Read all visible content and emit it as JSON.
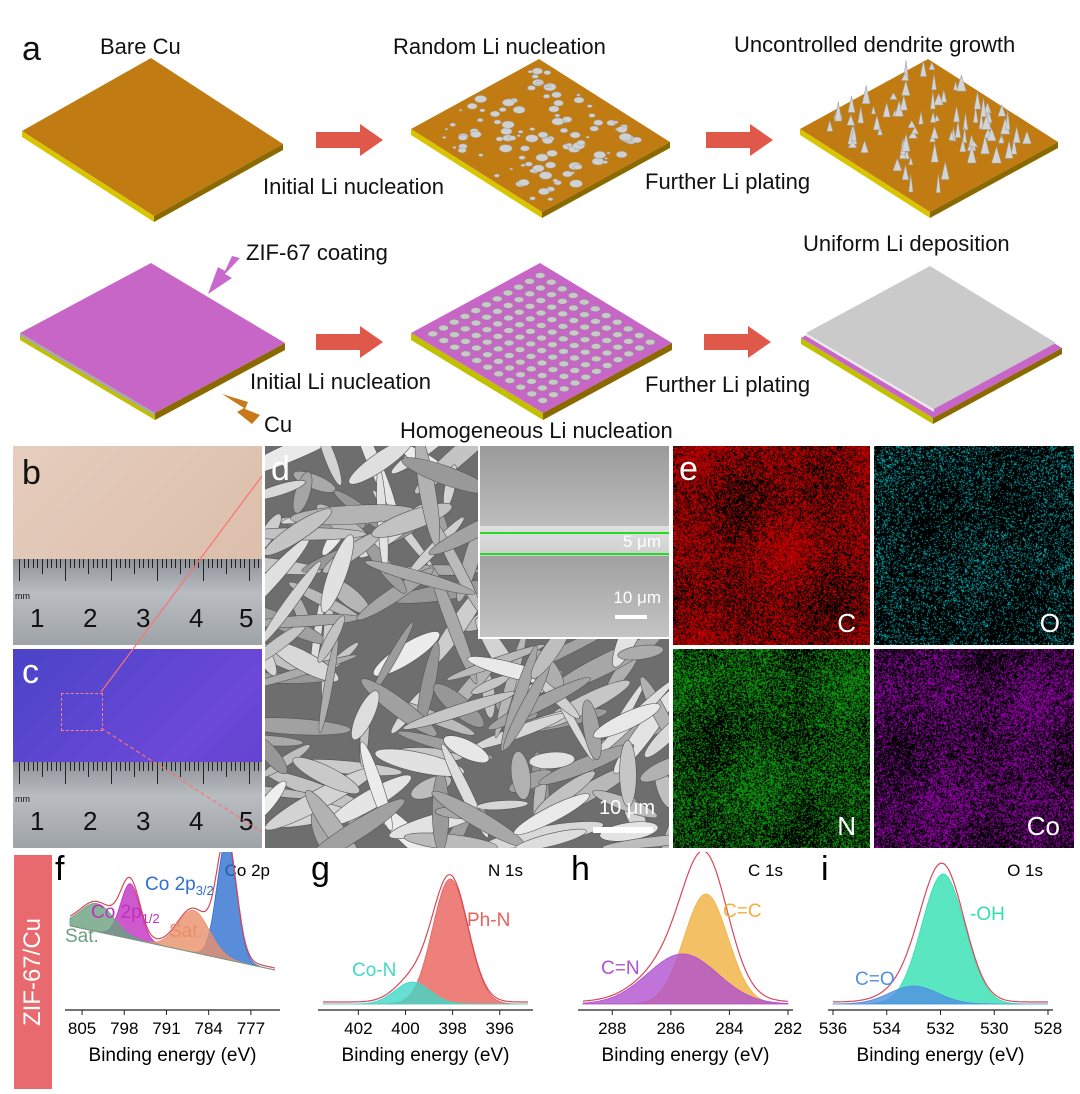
{
  "panel_a": {
    "letter": "a",
    "bare_cu": "Bare Cu",
    "random_li": "Random Li nucleation",
    "dendrite": "Uncontrolled dendrite growth",
    "initial_1": "Initial Li nucleation",
    "further_1": "Further Li plating",
    "zif_coating": "ZIF-67 coating",
    "uniform": "Uniform Li deposition",
    "initial_2": "Initial Li nucleation",
    "further_2": "Further Li plating",
    "cu": "Cu",
    "homogeneous": "Homogeneous Li nucleation",
    "colors": {
      "copper": "#c07c12",
      "zif": "#c866c8",
      "lithium": "#c9c9c9",
      "arrow": "#e0584a",
      "cu_arrow": "#c77818",
      "zif_arrow": "#c868cc"
    }
  },
  "panel_b": {
    "letter": "b",
    "ruler_numbers": [
      "1",
      "2",
      "3",
      "4",
      "5"
    ],
    "unit": "mm"
  },
  "panel_c": {
    "letter": "c",
    "ruler_numbers": [
      "1",
      "2",
      "3",
      "4",
      "5"
    ],
    "unit": "mm"
  },
  "panel_d": {
    "letter": "d",
    "scale_main": "10 μm",
    "inset_scale": "10 μm",
    "thickness": "5 μm"
  },
  "panel_e": {
    "letter": "e",
    "maps": [
      {
        "element": "C",
        "color": "#e00000"
      },
      {
        "element": "O",
        "color": "#00c8d0"
      },
      {
        "element": "N",
        "color": "#10b010"
      },
      {
        "element": "Co",
        "color": "#b000c8"
      }
    ]
  },
  "side_label": "ZIF-67/Cu",
  "chart_data": [
    {
      "type": "line",
      "letter": "f",
      "title": "Co 2p",
      "xlabel": "Binding energy (eV)",
      "x_ticks": [
        "805",
        "798",
        "791",
        "784",
        "777"
      ],
      "xlim": [
        807,
        773
      ],
      "peaks": [
        {
          "name": "Co 2p3/2",
          "label_main": "Co 2p",
          "label_sub": "3/2",
          "center": 781,
          "color": "#2f6fd0"
        },
        {
          "name": "Co 2p1/2",
          "label_main": "Co 2p",
          "label_sub": "1/2",
          "center": 797,
          "color": "#c030c0"
        },
        {
          "name": "Sat.",
          "label_main": "Sat.",
          "center": 786.5,
          "color": "#e8906a"
        },
        {
          "name": "Sat.",
          "label_main": "Sat.",
          "center": 802.5,
          "color": "#6aa080"
        }
      ]
    },
    {
      "type": "line",
      "letter": "g",
      "title": "N 1s",
      "xlabel": "Binding energy (eV)",
      "x_ticks": [
        "402",
        "400",
        "398",
        "396"
      ],
      "xlim": [
        403.5,
        394.8
      ],
      "peaks": [
        {
          "name": "Ph-N",
          "center": 398.1,
          "color": "#e8605a"
        },
        {
          "name": "Co-N",
          "center": 399.7,
          "color": "#40d8c8"
        }
      ]
    },
    {
      "type": "line",
      "letter": "h",
      "title": "C 1s",
      "xlabel": "Binding energy (eV)",
      "x_ticks": [
        "288",
        "286",
        "284",
        "282"
      ],
      "xlim": [
        289,
        282
      ],
      "peaks": [
        {
          "name": "C=C",
          "center": 284.8,
          "color": "#f0b040"
        },
        {
          "name": "C=N",
          "center": 285.6,
          "color": "#b050d0"
        }
      ]
    },
    {
      "type": "line",
      "letter": "i",
      "title": "O 1s",
      "xlabel": "Binding energy (eV)",
      "x_ticks": [
        "536",
        "534",
        "532",
        "530",
        "528"
      ],
      "xlim": [
        536,
        528
      ],
      "peaks": [
        {
          "name": "-OH",
          "center": 531.9,
          "color": "#30e0b0"
        },
        {
          "name": "C=O",
          "center": 533.0,
          "color": "#5090e0"
        }
      ]
    }
  ]
}
